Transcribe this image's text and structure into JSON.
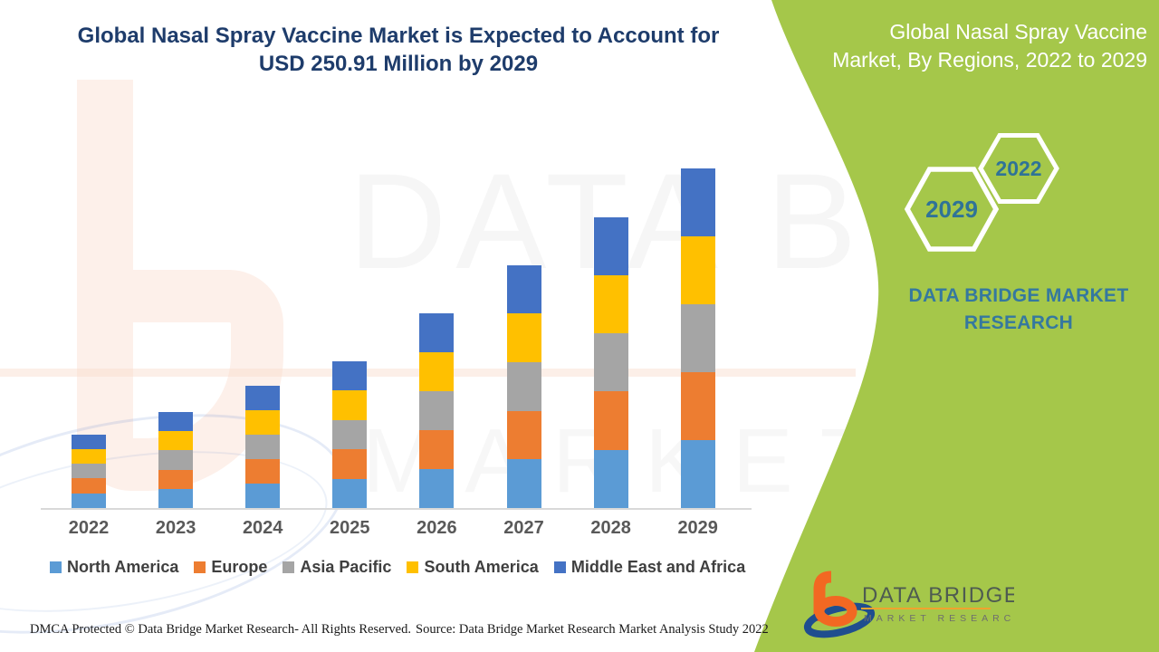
{
  "header": {
    "title_line1": "Global Nasal Spray Vaccine Market is Expected to Account for",
    "title_line2": "USD 250.91 Million by 2029"
  },
  "side_panel": {
    "background_color": "#a5c74a",
    "title_line1": "Global Nasal Spray Vaccine",
    "title_line2": "Market, By Regions, 2022 to 2029",
    "hexagon_front_label": "2029",
    "hexagon_back_label": "2022",
    "brand_text": "DATA BRIDGE MARKET RESEARCH",
    "logo": {
      "name_line": "DATA BRIDGE",
      "sub_line": "MARKET RESEARCH",
      "orange": "#f26822",
      "blue": "#1f4e8f",
      "name_color": "#4e5b51",
      "underline_color": "#f0a32f",
      "sub_color": "#6e6e6e"
    }
  },
  "watermark": {
    "line1": "DATA BRIDGE",
    "line2": "MARKET RESEARCH"
  },
  "chart_data": {
    "type": "bar",
    "stacked": true,
    "title": "Global Nasal Spray Vaccine Market is Expected to Account for USD 250.91 Million by 2029",
    "unit": "USD Million",
    "categories": [
      "2022",
      "2023",
      "2024",
      "2025",
      "2026",
      "2027",
      "2028",
      "2029"
    ],
    "series": [
      {
        "name": "North America",
        "color": "#5B9BD5",
        "values": [
          10.9,
          14.2,
          18.1,
          21.7,
          28.8,
          35.9,
          43.0,
          50.2
        ]
      },
      {
        "name": "Europe",
        "color": "#ED7D31",
        "values": [
          10.9,
          14.2,
          18.1,
          21.7,
          28.8,
          35.9,
          43.0,
          50.2
        ]
      },
      {
        "name": "Asia Pacific",
        "color": "#A5A5A5",
        "values": [
          10.9,
          14.2,
          18.1,
          21.7,
          28.8,
          35.9,
          43.0,
          50.2
        ]
      },
      {
        "name": "South America",
        "color": "#FFC000",
        "values": [
          10.9,
          14.2,
          18.1,
          21.7,
          28.8,
          35.9,
          43.0,
          50.2
        ]
      },
      {
        "name": "Middle East and Africa",
        "color": "#4472C4",
        "values": [
          10.9,
          14.2,
          18.1,
          21.7,
          28.8,
          35.9,
          43.0,
          50.2
        ]
      }
    ],
    "estimated_totals_usd_million": [
      54.5,
      71.0,
      90.5,
      108.5,
      144.0,
      179.5,
      215.0,
      250.91
    ],
    "xlabel": "",
    "ylabel": "",
    "y_axis_visible": false,
    "grid": false,
    "legend_position": "bottom"
  },
  "footer": {
    "dmca": "DMCA Protected © Data Bridge Market Research- All Rights Reserved.",
    "source": "Source: Data Bridge Market Research Market Analysis Study 2022"
  }
}
